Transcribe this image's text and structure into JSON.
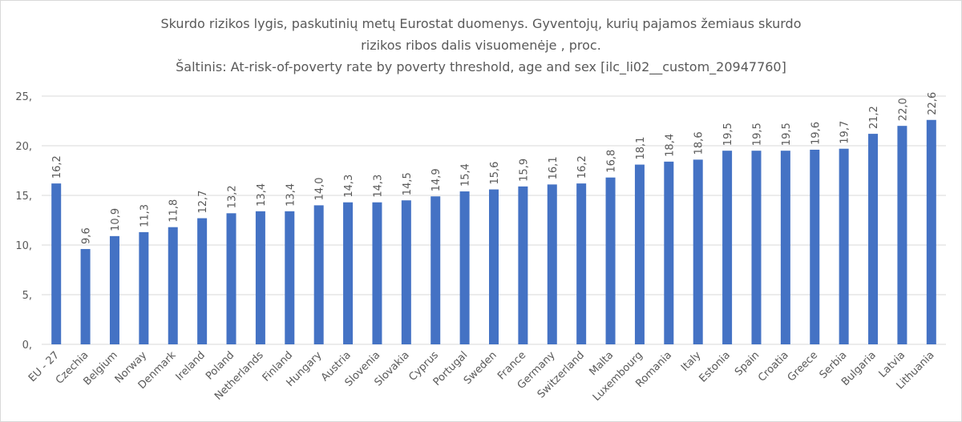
{
  "chart_data": {
    "type": "bar",
    "title_lines": [
      "Skurdo rizikos lygis, paskutinių metų Eurostat duomenys. Gyventojų, kurių pajamos žemiaus skurdo",
      "rizikos ribos dalis visuomenėje , proc.",
      "Šaltinis: At-risk-of-poverty rate by poverty threshold, age and sex [ilc_li02__custom_20947760]"
    ],
    "categories": [
      "EU - 27",
      "Czechia",
      "Belgium",
      "Norway",
      "Denmark",
      "Ireland",
      "Poland",
      "Netherlands",
      "Finland",
      "Hungary",
      "Austria",
      "Slovenia",
      "Slovakia",
      "Cyprus",
      "Portugal",
      "Sweden",
      "France",
      "Germany",
      "Switzerland",
      "Malta",
      "Luxembourg",
      "Romania",
      "Italy",
      "Estonia",
      "Spain",
      "Croatia",
      "Greece",
      "Serbia",
      "Bulgaria",
      "Latvia",
      "Lithuania"
    ],
    "values": [
      16.2,
      9.6,
      10.9,
      11.3,
      11.8,
      12.7,
      13.2,
      13.4,
      13.4,
      14.0,
      14.3,
      14.3,
      14.5,
      14.9,
      15.4,
      15.6,
      15.9,
      16.1,
      16.2,
      16.8,
      18.1,
      18.4,
      18.6,
      19.5,
      19.5,
      19.5,
      19.6,
      19.7,
      21.2,
      22.0,
      22.6
    ],
    "value_labels": [
      "16,2",
      "9,6",
      "10,9",
      "11,3",
      "11,8",
      "12,7",
      "13,2",
      "13,4",
      "13,4",
      "14,0",
      "14,3",
      "14,3",
      "14,5",
      "14,9",
      "15,4",
      "15,6",
      "15,9",
      "16,1",
      "16,2",
      "16,8",
      "18,1",
      "18,4",
      "18,6",
      "19,5",
      "19,5",
      "19,5",
      "19,6",
      "19,7",
      "21,2",
      "22,0",
      "22,6"
    ],
    "yticks": [
      0,
      5,
      10,
      15,
      20,
      25
    ],
    "ytick_labels": [
      "0,",
      "5,",
      "10,",
      "15,",
      "20,",
      "25,"
    ],
    "ylim": [
      0,
      25
    ],
    "grid": true,
    "bar_color": "#4472c4",
    "grid_color": "#d9d9d9",
    "text_color": "#595959"
  }
}
